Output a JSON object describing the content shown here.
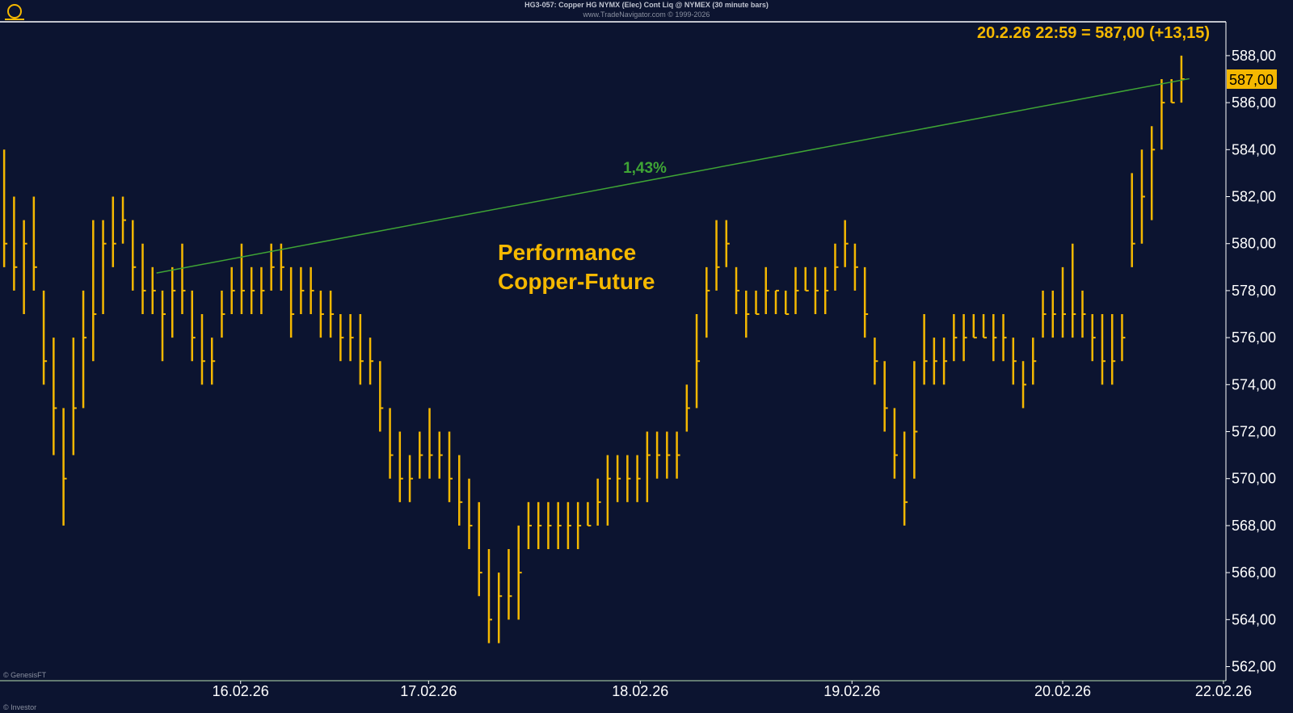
{
  "chart_data": {
    "type": "ohlc",
    "title": "HG3-057:  Copper HG NYMX (Elec) Cont Liq @ NYMEX  (30 minute bars)",
    "subtitle": "www.TradeNavigator.com © 1999-2026",
    "last_price_text": "20.2.26 22:59 = 587,00 (+13,15)",
    "price_tag": {
      "value": 587,
      "label": "587,00"
    },
    "annotation": [
      "Performance",
      "Copper-Future"
    ],
    "credit": "© GenesisFT",
    "footer": "© Investor",
    "color": "#f5b800",
    "trendline": {
      "x": [
        15.4,
        119.8
      ],
      "y": [
        578.75,
        587.02
      ],
      "label": "1,43%",
      "color": "#3fa535"
    },
    "xlim": [
      -0.42,
      123.5
    ],
    "xticks": [
      {
        "value": 23.9,
        "label": "16.02.26"
      },
      {
        "value": 42.9,
        "label": "17.02.26"
      },
      {
        "value": 64.3,
        "label": "18.02.26"
      },
      {
        "value": 85.7,
        "label": "19.02.26"
      },
      {
        "value": 107,
        "label": "20.02.26"
      },
      {
        "value": 123.25,
        "label": "22.02.26"
      }
    ],
    "ylim": [
      561.4,
      589.44
    ],
    "yticks": [
      {
        "value": 562,
        "label": "562,00"
      },
      {
        "value": 564,
        "label": "564,00"
      },
      {
        "value": 566,
        "label": "566,00"
      },
      {
        "value": 568,
        "label": "568,00"
      },
      {
        "value": 570,
        "label": "570,00"
      },
      {
        "value": 572,
        "label": "572,00"
      },
      {
        "value": 574,
        "label": "574,00"
      },
      {
        "value": 576,
        "label": "576,00"
      },
      {
        "value": 578,
        "label": "578,00"
      },
      {
        "value": 580,
        "label": "580,00"
      },
      {
        "value": 582,
        "label": "582,00"
      },
      {
        "value": 584,
        "label": "584,00"
      },
      {
        "value": 586,
        "label": "586,00"
      },
      {
        "value": 588,
        "label": "588,00"
      }
    ],
    "high": [
      584,
      582,
      581,
      582,
      578,
      576,
      573,
      576,
      578,
      581,
      581,
      582,
      582,
      581,
      580,
      579,
      578,
      579,
      580,
      578,
      577,
      576,
      578,
      579,
      580,
      579,
      579,
      580,
      580,
      579,
      579,
      579,
      578,
      578,
      577,
      577,
      577,
      576,
      575,
      573,
      572,
      571,
      572,
      573,
      572,
      572,
      571,
      570,
      569,
      567,
      566,
      567,
      568,
      569,
      569,
      569,
      569,
      569,
      569,
      569,
      570,
      571,
      571,
      571,
      571,
      572,
      572,
      572,
      572,
      574,
      577,
      579,
      581,
      581,
      579,
      578,
      578,
      579,
      578,
      578,
      579,
      579,
      579,
      579,
      580,
      581,
      580,
      579,
      576,
      575,
      573,
      572,
      575,
      577,
      576,
      576,
      577,
      577,
      577,
      577,
      577,
      577,
      576,
      575,
      576,
      578,
      578,
      579,
      580,
      578,
      577,
      577,
      577,
      577,
      583,
      584,
      585,
      587,
      587,
      588
    ],
    "low": [
      579,
      578,
      577,
      578,
      574,
      571,
      568,
      571,
      573,
      575,
      577,
      579,
      580,
      578,
      577,
      577,
      575,
      576,
      577,
      575,
      574,
      574,
      576,
      577,
      577,
      577,
      577,
      578,
      578,
      576,
      577,
      577,
      576,
      576,
      575,
      575,
      574,
      574,
      572,
      570,
      569,
      569,
      570,
      570,
      570,
      569,
      568,
      567,
      565,
      563,
      563,
      564,
      564,
      567,
      567,
      567,
      567,
      567,
      567,
      568,
      568,
      568,
      569,
      569,
      569,
      569,
      570,
      570,
      570,
      572,
      573,
      576,
      578,
      579,
      577,
      576,
      577,
      577,
      577,
      577,
      577,
      578,
      577,
      577,
      578,
      579,
      578,
      576,
      574,
      572,
      570,
      568,
      570,
      574,
      574,
      574,
      575,
      575,
      576,
      576,
      575,
      575,
      574,
      573,
      574,
      576,
      576,
      576,
      576,
      576,
      575,
      574,
      574,
      575,
      579,
      580,
      581,
      584,
      586,
      586
    ],
    "close": [
      580,
      579,
      580,
      579,
      575,
      573,
      570,
      573,
      576,
      577,
      580,
      580,
      581,
      579,
      578,
      578,
      577,
      578,
      578,
      576,
      575,
      575,
      577,
      578,
      578,
      578,
      578,
      579,
      579,
      577,
      578,
      578,
      577,
      577,
      576,
      576,
      575,
      575,
      573,
      571,
      570,
      570,
      571,
      571,
      571,
      570,
      569,
      568,
      566,
      564,
      565,
      565,
      566,
      568,
      568,
      568,
      568,
      568,
      568,
      568,
      569,
      570,
      570,
      570,
      570,
      571,
      571,
      571,
      571,
      573,
      575,
      578,
      579,
      580,
      578,
      577,
      577,
      578,
      578,
      577,
      578,
      578,
      578,
      578,
      579,
      580,
      579,
      577,
      575,
      573,
      571,
      569,
      572,
      575,
      575,
      575,
      576,
      576,
      576,
      576,
      576,
      576,
      575,
      574,
      575,
      577,
      577,
      577,
      577,
      577,
      576,
      575,
      575,
      576,
      580,
      582,
      584,
      586,
      586,
      587
    ]
  }
}
